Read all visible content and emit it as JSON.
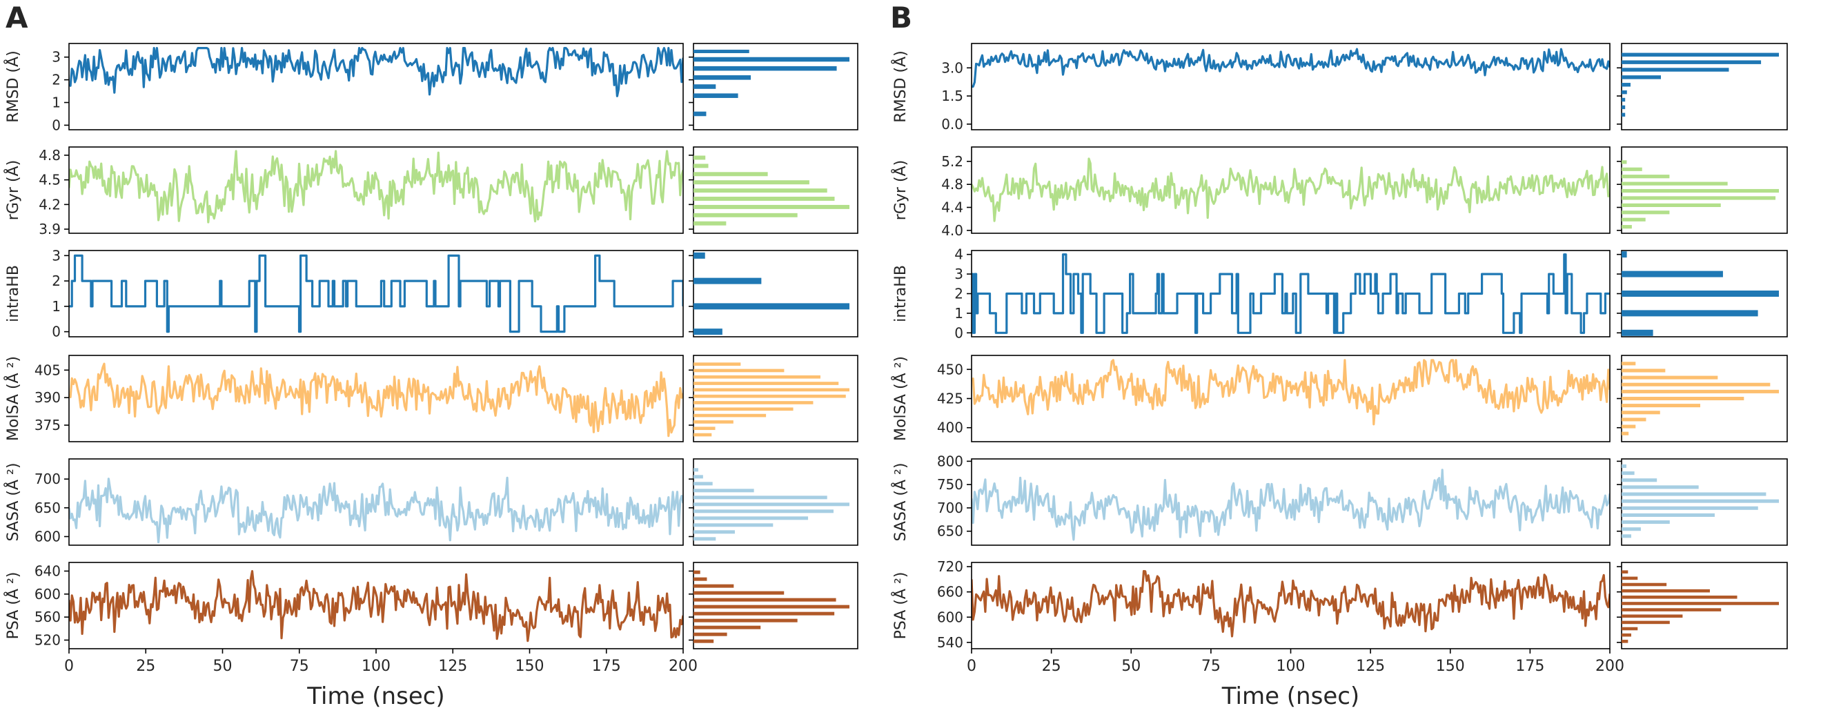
{
  "figure": {
    "panel_labels": [
      "A",
      "B"
    ],
    "xlabel": "Time (nsec)"
  },
  "colors": {
    "RMSD": "#1f77b4",
    "rGyr": "#b2df8a",
    "intraHB": "#1f78b4",
    "MolSA": "#fdbf6f",
    "SASA": "#a6cee3",
    "PSA": "#b15928"
  },
  "chart_data": [
    {
      "panel": "A",
      "type": "line",
      "title": "",
      "xlabel": "Time (nsec)",
      "xlim": [
        0,
        200
      ],
      "xticks": [
        "0",
        "25",
        "50",
        "75",
        "100",
        "125",
        "150",
        "175",
        "200"
      ],
      "rows": [
        {
          "name": "RMSD",
          "ylabel": "RMSD (Å)",
          "ylim": [
            -0.2,
            3.6
          ],
          "yticks": [
            0,
            1,
            2,
            3
          ],
          "yticklabels": [
            "0",
            "1",
            "2",
            "3"
          ],
          "range": [
            1.2,
            3.4
          ],
          "mean": 2.6,
          "sd": 0.4,
          "start": 1.8,
          "rise": 2,
          "seed": 11,
          "hist": {
            "edges": [
              0.3,
              0.7,
              1.1,
              1.5,
              1.9,
              2.3,
              2.7,
              3.1,
              3.4
            ],
            "counts": [
              8,
              0,
              28,
              14,
              36,
              90,
              98,
              35,
              15
            ]
          }
        },
        {
          "name": "rGyr",
          "ylabel": "rGyr (Å)",
          "ylim": [
            3.85,
            4.9
          ],
          "yticks": [
            3.9,
            4.2,
            4.5,
            4.8
          ],
          "yticklabels": [
            "3.9",
            "4.2",
            "4.5",
            "4.8"
          ],
          "range": [
            3.95,
            4.85
          ],
          "mean": 4.38,
          "sd": 0.15,
          "start": 4.4,
          "rise": 0,
          "seed": 23,
          "hist": {
            "edges": [
              3.92,
              4.02,
              4.12,
              4.22,
              4.32,
              4.42,
              4.52,
              4.62,
              4.72,
              4.82
            ],
            "counts": [
              22,
              70,
              105,
              95,
              90,
              78,
              50,
              10,
              8
            ]
          }
        },
        {
          "name": "intraHB",
          "ylabel": "intraHB",
          "ylim": [
            -0.2,
            3.2
          ],
          "yticks": [
            0,
            1,
            2,
            3
          ],
          "yticklabels": [
            "0",
            "1",
            "2",
            "3"
          ],
          "levels": [
            0,
            1,
            2,
            3
          ],
          "probs": [
            0.1,
            0.45,
            0.4,
            0.05
          ],
          "seed": 37,
          "hist": {
            "bars": [
              {
                "y": 0,
                "count": 20
              },
              {
                "y": 1,
                "count": 108
              },
              {
                "y": 2,
                "count": 47
              },
              {
                "y": 3,
                "count": 8
              }
            ]
          }
        },
        {
          "name": "MolSA",
          "ylabel": "MolSA (Å ²)",
          "ylim": [
            366,
            413
          ],
          "yticks": [
            375,
            390,
            405
          ],
          "yticklabels": [
            "375",
            "390",
            "405"
          ],
          "range": [
            368,
            410
          ],
          "mean": 390,
          "sd": 6,
          "start": 392,
          "rise": 0,
          "seed": 51,
          "hist": {
            "edges": [
              368,
              371.5,
              375,
              378.5,
              382,
              385.5,
              389,
              392.5,
              396,
              399.5,
              403,
              406.5,
              410
            ],
            "counts": [
              10,
              12,
              22,
              40,
              55,
              66,
              84,
              86,
              80,
              70,
              50,
              26
            ]
          }
        },
        {
          "name": "SASA",
          "ylabel": "SASA (Å ²)",
          "ylim": [
            585,
            735
          ],
          "yticks": [
            600,
            650,
            700
          ],
          "yticklabels": [
            "600",
            "650",
            "700"
          ],
          "range": [
            590,
            728
          ],
          "mean": 645,
          "sd": 18,
          "start": 650,
          "rise": 0,
          "seed": 67,
          "hist": {
            "edges": [
              590,
              602,
              614,
              626,
              638,
              650,
              662,
              674,
              686,
              698,
              710,
              722
            ],
            "counts": [
              14,
              26,
              50,
              72,
              88,
              98,
              84,
              38,
              12,
              6,
              3
            ]
          }
        },
        {
          "name": "PSA",
          "ylabel": "PSA (Å ²)",
          "ylim": [
            505,
            655
          ],
          "yticks": [
            520,
            560,
            600,
            640
          ],
          "yticklabels": [
            "520",
            "560",
            "600",
            "640"
          ],
          "range": [
            510,
            648
          ],
          "mean": 578,
          "sd": 22,
          "start": 590,
          "rise": 0,
          "seed": 83,
          "hist": {
            "edges": [
              512,
              524,
              536,
              548,
              560,
              572,
              584,
              596,
              608,
              620,
              632,
              644
            ],
            "counts": [
              12,
              20,
              40,
              62,
              84,
              93,
              85,
              54,
              24,
              8,
              4
            ]
          }
        }
      ]
    },
    {
      "panel": "B",
      "type": "line",
      "title": "",
      "xlabel": "Time (nsec)",
      "xlim": [
        0,
        200
      ],
      "xticks": [
        "0",
        "25",
        "50",
        "75",
        "100",
        "125",
        "150",
        "175",
        "200"
      ],
      "rows": [
        {
          "name": "RMSD",
          "ylabel": "RMSD (Å)",
          "ylim": [
            -0.3,
            4.3
          ],
          "yticks": [
            0,
            1.5,
            3
          ],
          "yticklabels": [
            "0.0",
            "1.5",
            "3.0"
          ],
          "range": [
            2.0,
            4.0
          ],
          "mean": 3.3,
          "sd": 0.25,
          "start": 0.3,
          "rise": 3,
          "seed": 97,
          "hist": {
            "edges": [
              0.3,
              0.7,
              1.1,
              1.5,
              1.9,
              2.3,
              2.7,
              3.1,
              3.5,
              3.9
            ],
            "counts": [
              2,
              2,
              2,
              3,
              5,
              22,
              60,
              78,
              88,
              8
            ]
          }
        },
        {
          "name": "rGyr",
          "ylabel": "rGyr (Å)",
          "ylim": [
            3.95,
            5.45
          ],
          "yticks": [
            4.0,
            4.4,
            4.8,
            5.2
          ],
          "yticklabels": [
            "4.0",
            "4.4",
            "4.8",
            "5.2"
          ],
          "range": [
            4.1,
            5.35
          ],
          "mean": 4.72,
          "sd": 0.16,
          "start": 4.8,
          "rise": 0,
          "seed": 113,
          "hist": {
            "edges": [
              4.0,
              4.125,
              4.25,
              4.375,
              4.5,
              4.625,
              4.75,
              4.875,
              5.0,
              5.125,
              5.25
            ],
            "counts": [
              6,
              14,
              28,
              58,
              90,
              92,
              62,
              28,
              12,
              3
            ]
          }
        },
        {
          "name": "intraHB",
          "ylabel": "intraHB",
          "ylim": [
            -0.2,
            4.2
          ],
          "yticks": [
            0,
            1,
            2,
            3,
            4
          ],
          "yticklabels": [
            "0",
            "1",
            "2",
            "3",
            "4"
          ],
          "levels": [
            0,
            1,
            2,
            3,
            4
          ],
          "probs": [
            0.08,
            0.36,
            0.4,
            0.15,
            0.01
          ],
          "seed": 131,
          "hist": {
            "bars": [
              {
                "y": 0,
                "count": 18
              },
              {
                "y": 1,
                "count": 78
              },
              {
                "y": 2,
                "count": 90
              },
              {
                "y": 3,
                "count": 58
              },
              {
                "y": 4,
                "count": 3
              }
            ]
          }
        },
        {
          "name": "MolSA",
          "ylabel": "MolSA (Å ²)",
          "ylim": [
            388,
            462
          ],
          "yticks": [
            400,
            425,
            450
          ],
          "yticklabels": [
            "400",
            "425",
            "450"
          ],
          "range": [
            392,
            458
          ],
          "mean": 433,
          "sd": 9,
          "start": 440,
          "rise": 0,
          "seed": 149,
          "hist": {
            "edges": [
              392,
              398,
              404,
              410,
              416,
              422,
              428,
              434,
              440,
              446,
              452,
              458
            ],
            "counts": [
              4,
              8,
              14,
              22,
              45,
              70,
              90,
              85,
              55,
              25,
              8
            ]
          }
        },
        {
          "name": "SASA",
          "ylabel": "SASA (Å ²)",
          "ylim": [
            620,
            805
          ],
          "yticks": [
            650,
            700,
            750,
            800
          ],
          "yticklabels": [
            "650",
            "700",
            "750",
            "800"
          ],
          "range": [
            632,
            795
          ],
          "mean": 702,
          "sd": 22,
          "start": 720,
          "rise": 0,
          "seed": 167,
          "hist": {
            "edges": [
              632,
              647,
              662,
              677,
              692,
              707,
              722,
              737,
              752,
              767,
              782,
              797
            ],
            "counts": [
              6,
              12,
              30,
              58,
              85,
              98,
              90,
              48,
              22,
              8,
              3
            ]
          }
        },
        {
          "name": "PSA",
          "ylabel": "PSA (Å ²)",
          "ylim": [
            525,
            730
          ],
          "yticks": [
            540,
            600,
            660,
            720
          ],
          "yticklabels": [
            "540",
            "600",
            "660",
            "720"
          ],
          "range": [
            535,
            718
          ],
          "mean": 640,
          "sd": 25,
          "start": 690,
          "rise": 0,
          "seed": 181,
          "hist": {
            "edges": [
              535,
              550,
              565,
              580,
              595,
              610,
              625,
              640,
              655,
              670,
              685,
              700,
              715
            ],
            "counts": [
              4,
              6,
              10,
              30,
              38,
              62,
              98,
              72,
              55,
              28,
              10,
              4
            ]
          }
        }
      ]
    }
  ]
}
